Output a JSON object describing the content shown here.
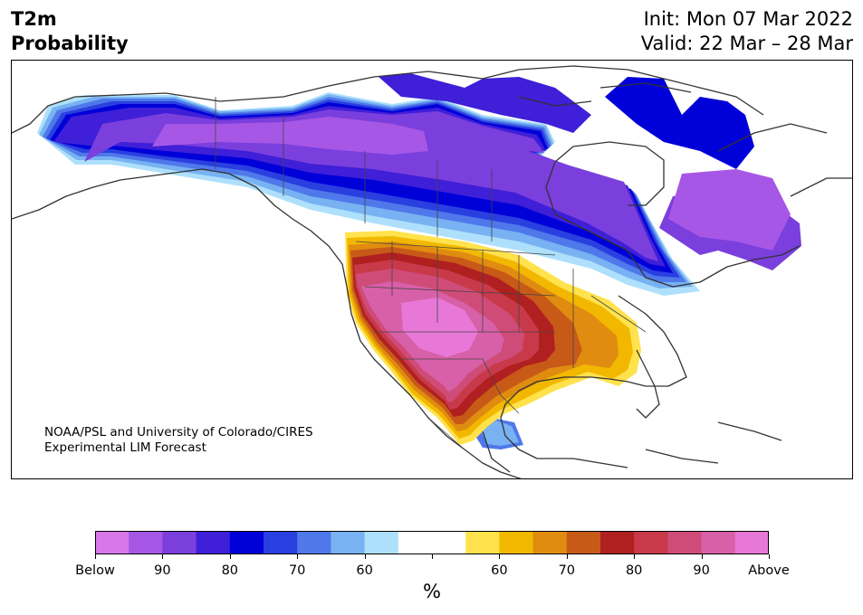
{
  "header": {
    "left_line1": "T2m",
    "left_line2": "Probability",
    "right_line1": "Init: Mon 07 Mar 2022",
    "right_line2": "Valid: 22 Mar – 28 Mar"
  },
  "credit": {
    "line1": "NOAA/PSL and University of Colorado/CIRES",
    "line2": "Experimental LIM Forecast"
  },
  "colorbar": {
    "unit": "%",
    "tick_labels": [
      "Below",
      "90",
      "80",
      "70",
      "60",
      "",
      "60",
      "70",
      "80",
      "90",
      "Above"
    ],
    "colors": [
      "#d878e8",
      "#a757e6",
      "#7a3fdd",
      "#3f1fd8",
      "#0000d8",
      "#2a3fe0",
      "#4f78ea",
      "#78b2f2",
      "#aee0fc",
      "#ffffff",
      "#ffffff",
      "#ffe24c",
      "#f2b800",
      "#e08c10",
      "#c85a18",
      "#b02020",
      "#c83a4a",
      "#d04c78",
      "#d860a8",
      "#e878d8"
    ]
  },
  "legend_colors": {
    "below_max": "#d878e8",
    "below_strong": "#7a3fdd",
    "below_deep": "#0000d8",
    "below_light": "#aee0fc",
    "above_light": "#ffe24c",
    "above_mid": "#e08c10",
    "above_red": "#b02020",
    "above_max": "#e878d8"
  }
}
